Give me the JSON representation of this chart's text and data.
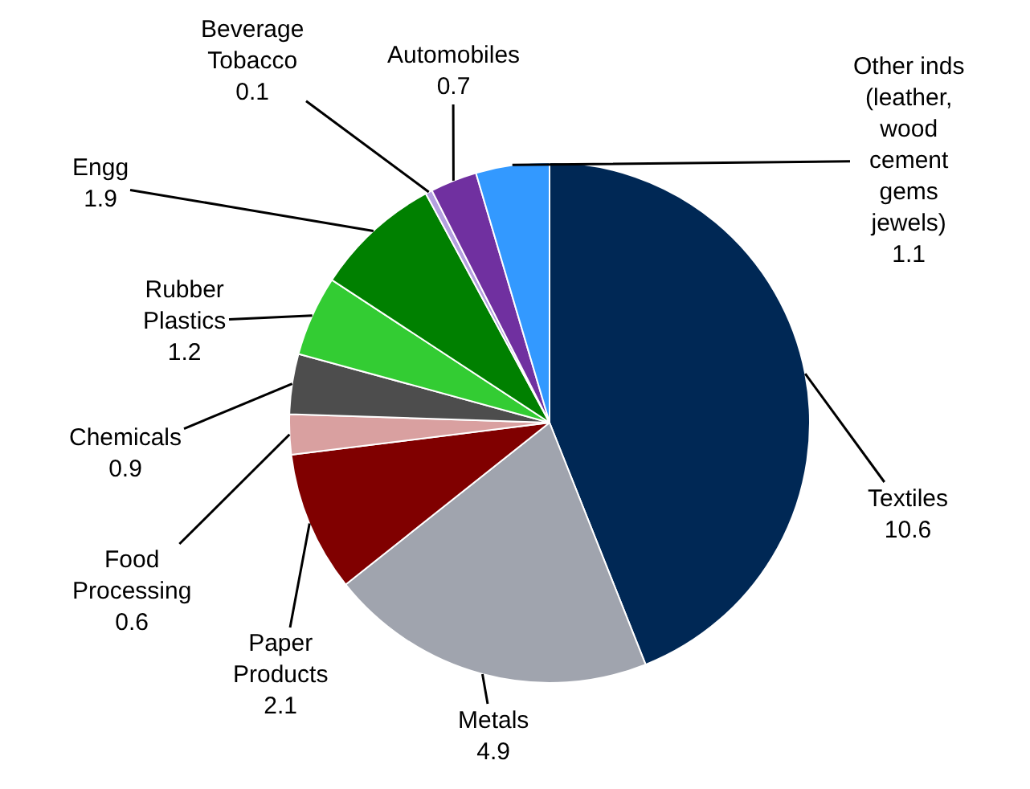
{
  "chart_data": {
    "type": "pie",
    "categories": [
      "Textiles",
      "Metals",
      "Paper\nProducts",
      "Food\nProcessing",
      "Chemicals",
      "Rubber\nPlastics",
      "Engg",
      "Beverage\nTobacco",
      "Automobiles",
      "Other inds\n(leather,\nwood\ncement\ngems\njewels)"
    ],
    "values": [
      10.6,
      4.9,
      2.1,
      0.6,
      0.9,
      1.2,
      1.9,
      0.1,
      0.7,
      1.1
    ],
    "colors": [
      "#002855",
      "#a0a4ae",
      "#800000",
      "#d9a0a0",
      "#4d4d4d",
      "#33cc33",
      "#008000",
      "#b4a0e0",
      "#7030a0",
      "#3399ff"
    ],
    "data_labels": true,
    "legend": false
  }
}
